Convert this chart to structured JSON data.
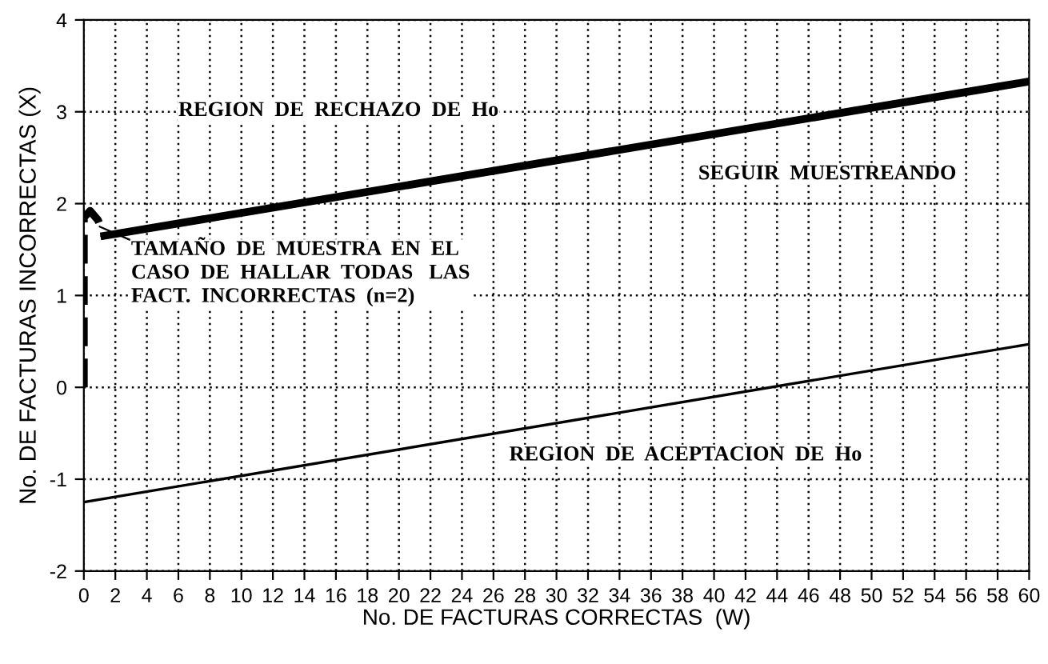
{
  "chart_data": {
    "type": "line",
    "xlabel": "No. DE FACTURAS CORRECTAS  (W)",
    "ylabel": "No. DE FACTURAS INCORRECTAS (X)",
    "series": [
      {
        "color": "#000000",
        "x": [
          1.3,
          60
        ],
        "values": [
          1.65,
          3.33
        ],
        "line_style": "solid"
      },
      {
        "color": "#000000",
        "x": [
          0,
          60
        ],
        "values": [
          -1.25,
          0.47
        ],
        "line_style": "solid"
      },
      {
        "color": "#000000",
        "x": [
          0,
          0,
          0.4,
          0.9,
          1.3
        ],
        "values": [
          0,
          1.85,
          1.92,
          1.82,
          1.65
        ],
        "line_style": "dashed"
      }
    ],
    "annotations": [
      "REGION  DE  RECHAZO  DE  Ho",
      "SEGUIR  MUESTREANDO",
      "REGION  DE  ACEPTACION  DE  Ho",
      {
        "text": "TAMAÑO  DE  MUESTRA  EN  EL\nCASO  DE  HALLAR  TODAS   LAS\nFACT.  INCORRECTAS  (n=2)",
        "x": 1.0,
        "y": 1.75
      }
    ],
    "xlim": [
      0,
      60
    ],
    "xticks": [
      0,
      2,
      4,
      6,
      8,
      10,
      12,
      14,
      16,
      18,
      20,
      22,
      24,
      26,
      28,
      30,
      32,
      34,
      36,
      38,
      40,
      42,
      44,
      46,
      48,
      50,
      52,
      54,
      56,
      58,
      60
    ],
    "ylim": [
      -2,
      4
    ],
    "yticks": [
      -2,
      -1,
      0,
      1,
      2,
      3,
      4
    ],
    "grid": true,
    "marker": "none"
  }
}
